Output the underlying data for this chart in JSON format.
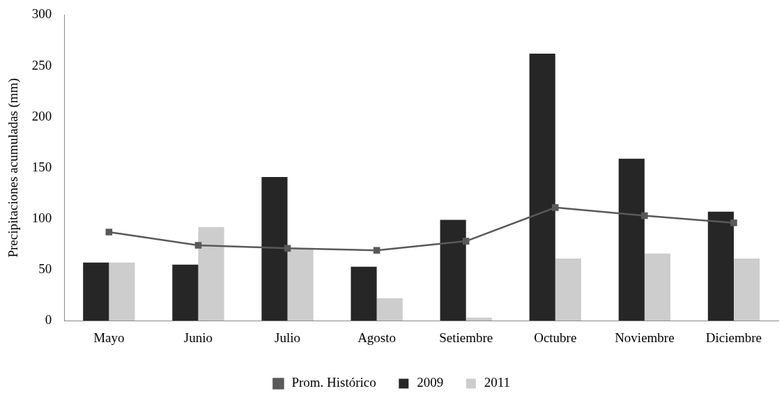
{
  "chart_data": {
    "type": "bar",
    "ylabel": "Precipitaciones acumuladas (mm)",
    "categories": [
      "Mayo",
      "Junio",
      "Julio",
      "Agosto",
      "Setiembre",
      "Octubre",
      "Noviembre",
      "Diciembre"
    ],
    "series": [
      {
        "name": "2009",
        "color": "#262626",
        "values": [
          57,
          55,
          141,
          53,
          99,
          262,
          159,
          107
        ]
      },
      {
        "name": "2011",
        "color": "#cdcdcd",
        "values": [
          57,
          92,
          71,
          22,
          3,
          61,
          66,
          61
        ]
      },
      {
        "name": "Prom. Histórico",
        "type": "line",
        "color": "#595959",
        "values": [
          87,
          74,
          71,
          69,
          78,
          111,
          103,
          96
        ]
      }
    ],
    "ylim": [
      0,
      300
    ],
    "yticks": [
      0,
      50,
      100,
      150,
      200,
      250,
      300
    ],
    "grid": false,
    "legend": "bottom",
    "marker": "square"
  }
}
